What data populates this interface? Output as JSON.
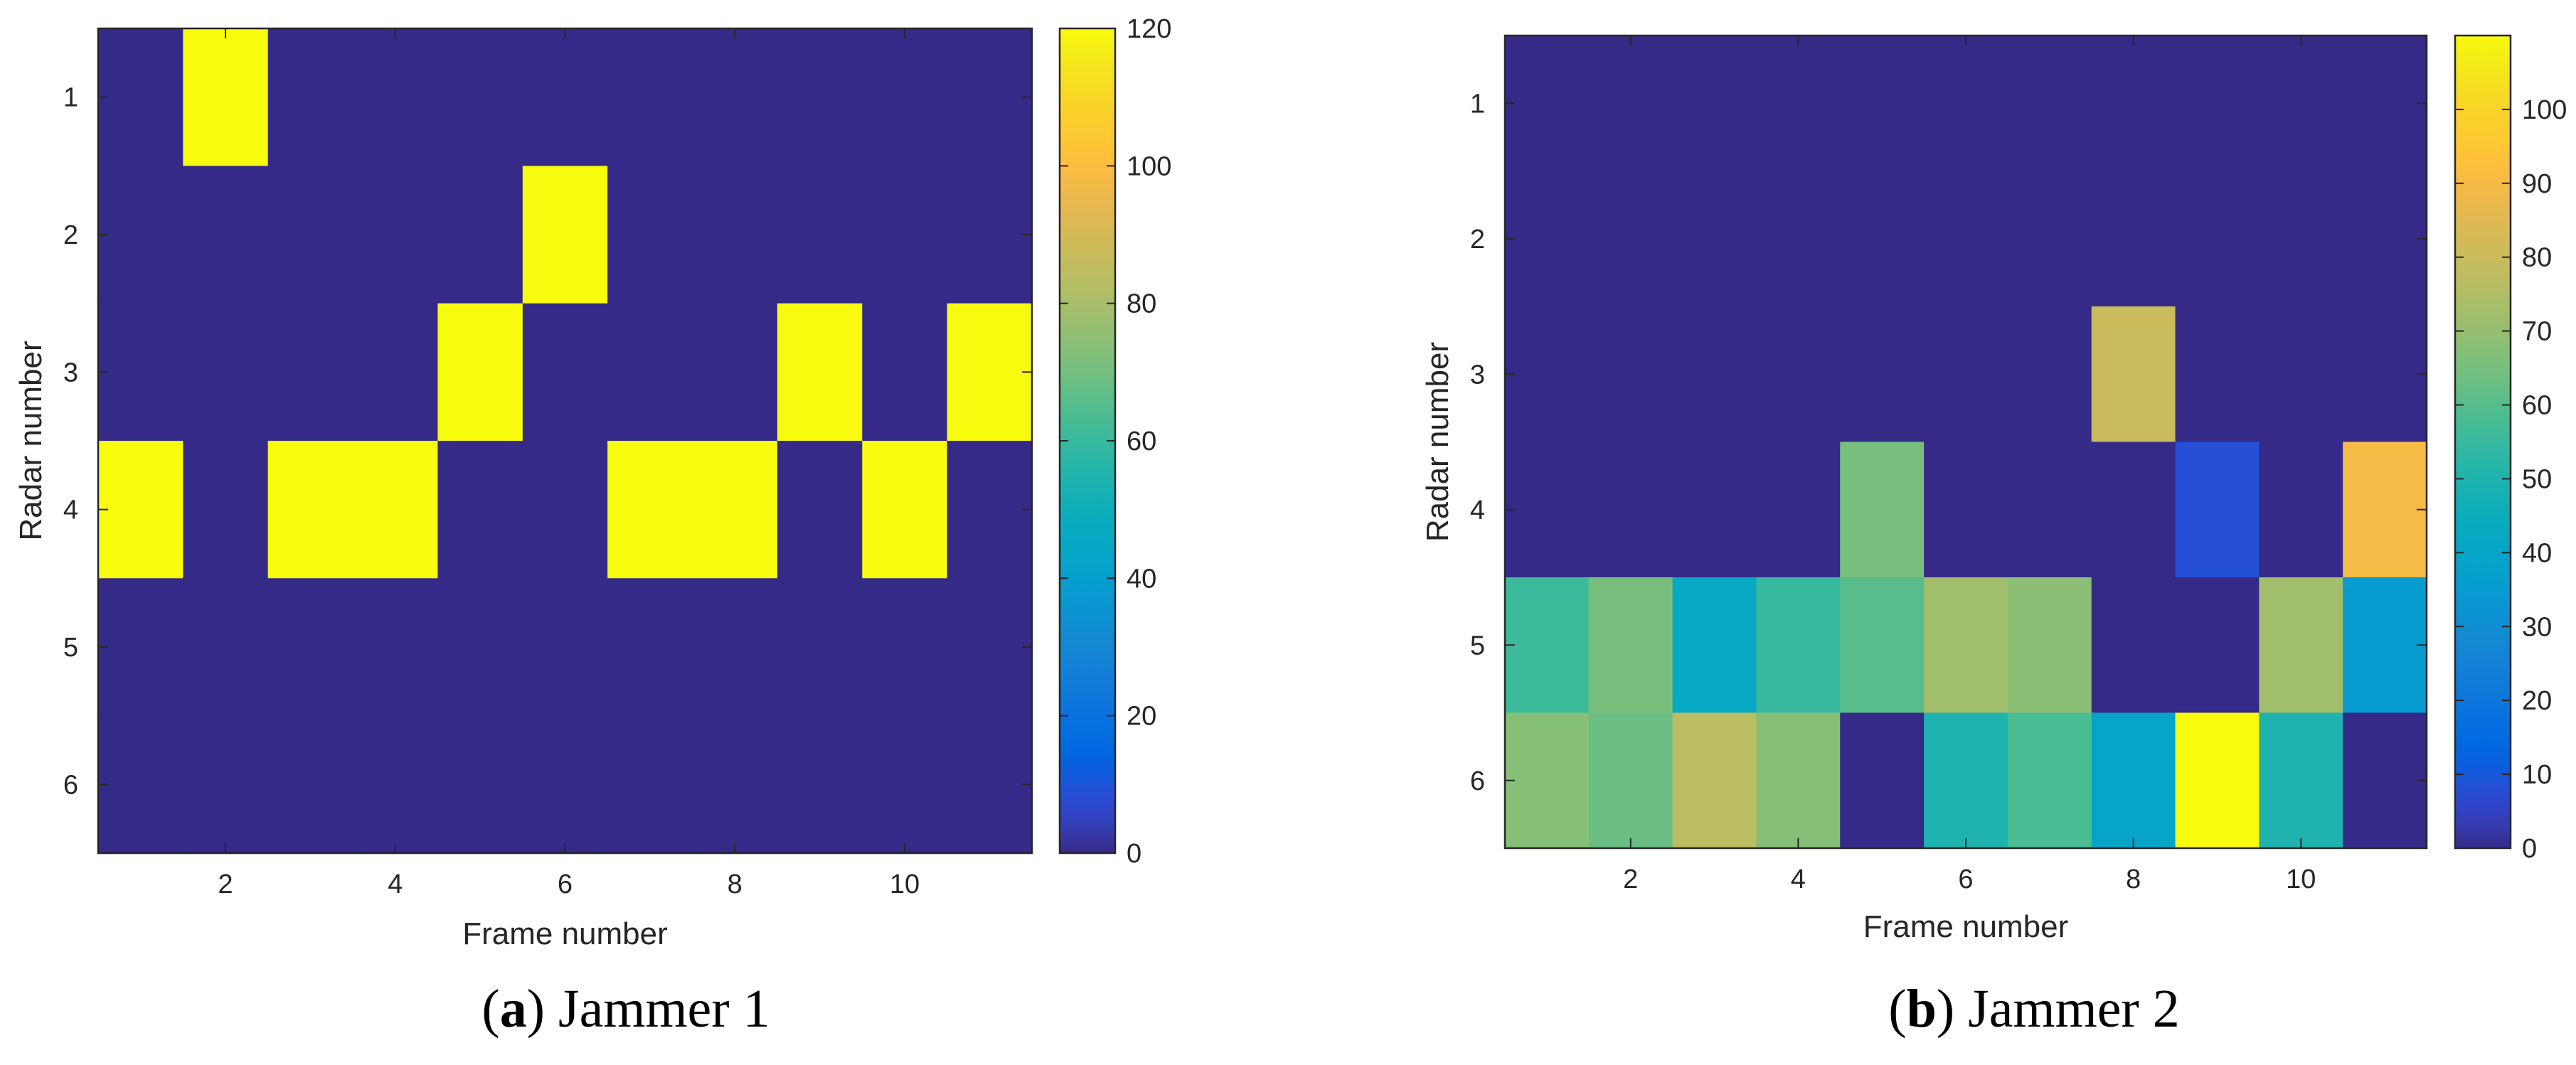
{
  "chart_data": [
    {
      "type": "heatmap",
      "caption_letter": "a",
      "caption_title": "Jammer 1",
      "xlabel": "Frame number",
      "ylabel": "Radar number",
      "x_categories": [
        1,
        2,
        3,
        4,
        5,
        6,
        7,
        8,
        9,
        10,
        11
      ],
      "y_categories": [
        1,
        2,
        3,
        4,
        5,
        6
      ],
      "x_tick_labels": [
        "2",
        "4",
        "6",
        "8",
        "10"
      ],
      "y_tick_labels": [
        "1",
        "2",
        "3",
        "4",
        "5",
        "6"
      ],
      "colorbar_range": [
        0,
        120
      ],
      "colorbar_tick_labels": [
        "0",
        "20",
        "40",
        "60",
        "80",
        "100",
        "120"
      ],
      "values": [
        [
          0,
          120,
          0,
          0,
          0,
          0,
          0,
          0,
          0,
          0,
          0
        ],
        [
          0,
          0,
          0,
          0,
          0,
          120,
          0,
          0,
          0,
          0,
          0
        ],
        [
          0,
          0,
          0,
          0,
          120,
          0,
          0,
          0,
          120,
          0,
          120
        ],
        [
          120,
          0,
          120,
          120,
          0,
          0,
          120,
          120,
          0,
          120,
          0
        ],
        [
          0,
          0,
          0,
          0,
          0,
          0,
          0,
          0,
          0,
          0,
          0
        ],
        [
          0,
          0,
          0,
          0,
          0,
          0,
          0,
          0,
          0,
          0,
          0
        ]
      ]
    },
    {
      "type": "heatmap",
      "caption_letter": "b",
      "caption_title": "Jammer 2",
      "xlabel": "Frame number",
      "ylabel": "Radar number",
      "x_categories": [
        1,
        2,
        3,
        4,
        5,
        6,
        7,
        8,
        9,
        10,
        11
      ],
      "y_categories": [
        1,
        2,
        3,
        4,
        5,
        6
      ],
      "x_tick_labels": [
        "2",
        "4",
        "6",
        "8",
        "10"
      ],
      "y_tick_labels": [
        "1",
        "2",
        "3",
        "4",
        "5",
        "6"
      ],
      "colorbar_range": [
        0,
        110
      ],
      "colorbar_tick_labels": [
        "0",
        "10",
        "20",
        "30",
        "40",
        "50",
        "60",
        "70",
        "80",
        "90",
        "100"
      ],
      "values": [
        [
          0,
          0,
          0,
          0,
          0,
          0,
          0,
          0,
          0,
          0,
          0
        ],
        [
          0,
          0,
          0,
          0,
          0,
          0,
          0,
          0,
          0,
          0,
          0
        ],
        [
          0,
          0,
          0,
          0,
          0,
          0,
          0,
          80,
          0,
          0,
          0
        ],
        [
          0,
          0,
          0,
          0,
          65,
          0,
          0,
          0,
          8,
          0,
          90
        ],
        [
          56,
          65,
          42,
          55,
          60,
          72,
          68,
          0,
          0,
          72,
          35
        ],
        [
          67,
          63,
          77,
          67,
          0,
          50,
          58,
          40,
          110,
          50,
          0
        ]
      ]
    }
  ]
}
